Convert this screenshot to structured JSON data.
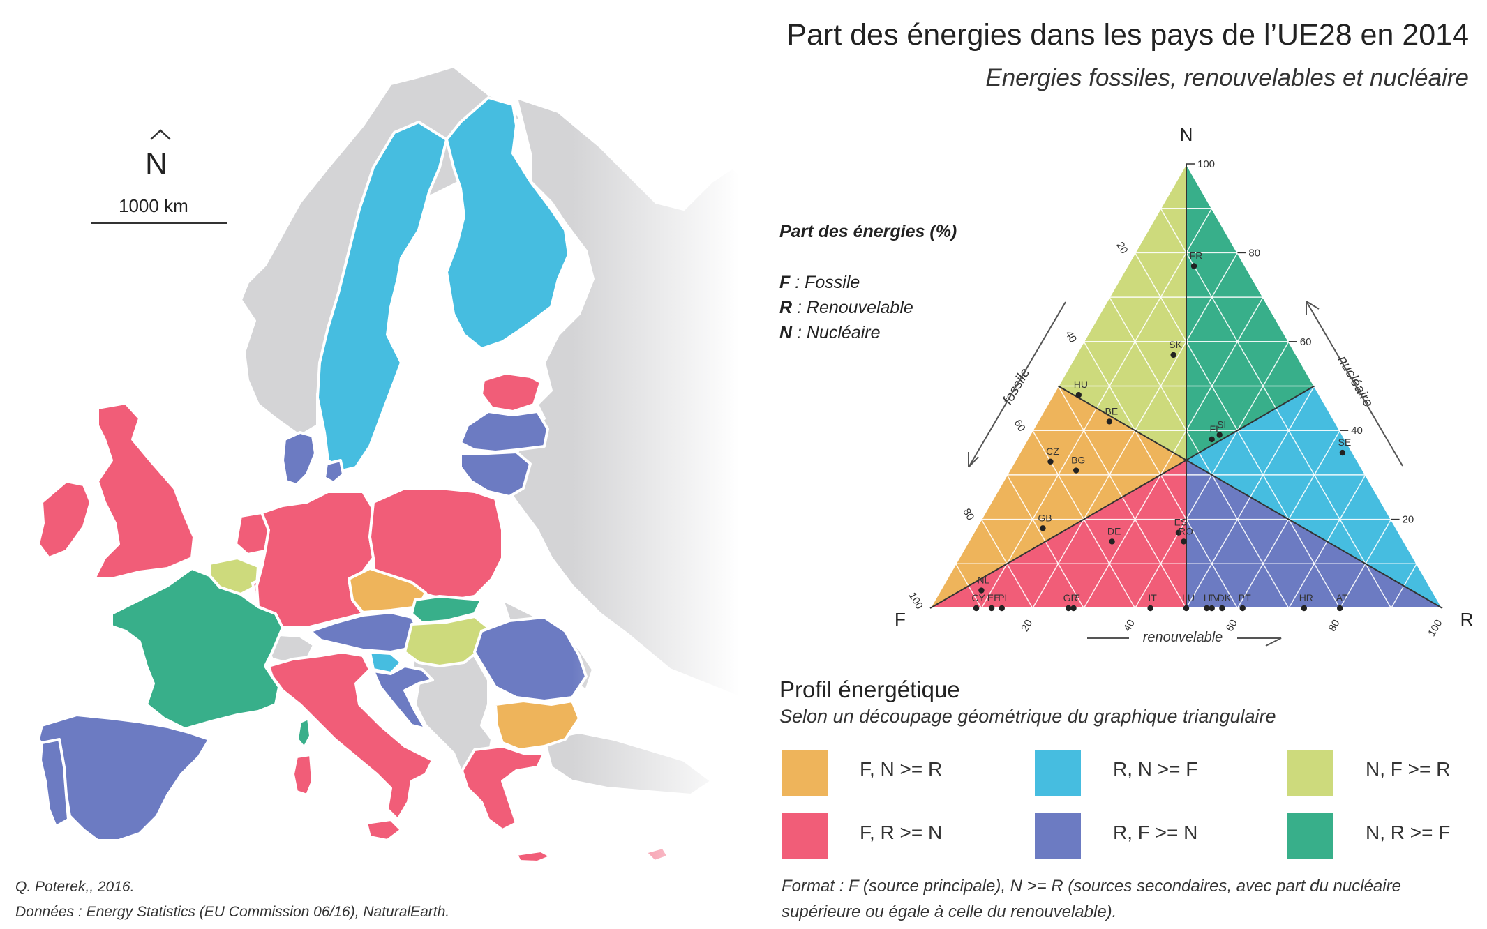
{
  "title": "Part des énergies dans les pays de l’UE28 en 2014",
  "subtitle": "Energies fossiles, renouvelables et nucléaire",
  "legend": {
    "title": "Part des énergies (%)",
    "items": [
      {
        "key": "F",
        "label": " : Fossile"
      },
      {
        "key": "R",
        "label": " : Renouvelable"
      },
      {
        "key": "N",
        "label": " : Nucléaire"
      }
    ]
  },
  "map": {
    "north_label": "N",
    "scale_label": "1000 km"
  },
  "ternary": {
    "vertex_labels": {
      "top": "N",
      "left": "F",
      "right": "R"
    },
    "axis_names": {
      "fossile": "fossile",
      "nucleaire": "nucléaire",
      "renouvelable": "renouvelable"
    },
    "ticks": [
      "20",
      "40",
      "60",
      "80",
      "100"
    ],
    "points": [
      {
        "code": "FR",
        "F": 10,
        "R": 13,
        "N": 77
      },
      {
        "code": "SK",
        "F": 24,
        "R": 19,
        "N": 57
      },
      {
        "code": "HU",
        "F": 47,
        "R": 5,
        "N": 48
      },
      {
        "code": "BE",
        "F": 44,
        "R": 14,
        "N": 42
      },
      {
        "code": "SE",
        "F": 2,
        "R": 63,
        "N": 35
      },
      {
        "code": "SI",
        "F": 24,
        "R": 37,
        "N": 39
      },
      {
        "code": "FI",
        "F": 26,
        "R": 36,
        "N": 38
      },
      {
        "code": "CZ",
        "F": 60,
        "R": 7,
        "N": 33
      },
      {
        "code": "BG",
        "F": 56,
        "R": 13,
        "N": 31
      },
      {
        "code": "ES",
        "F": 43,
        "R": 40,
        "N": 17
      },
      {
        "code": "RO",
        "F": 43,
        "R": 42,
        "N": 15
      },
      {
        "code": "GB",
        "F": 69,
        "R": 13,
        "N": 18
      },
      {
        "code": "DE",
        "F": 57,
        "R": 28,
        "N": 15
      },
      {
        "code": "NL",
        "F": 88,
        "R": 8,
        "N": 4
      },
      {
        "code": "CY",
        "F": 91,
        "R": 9,
        "N": 0
      },
      {
        "code": "EE",
        "F": 88,
        "R": 12,
        "N": 0
      },
      {
        "code": "PL",
        "F": 86,
        "R": 14,
        "N": 0
      },
      {
        "code": "GR",
        "F": 73,
        "R": 27,
        "N": 0
      },
      {
        "code": "IE",
        "F": 72,
        "R": 28,
        "N": 0
      },
      {
        "code": "IT",
        "F": 57,
        "R": 43,
        "N": 0
      },
      {
        "code": "LU",
        "F": 50,
        "R": 50,
        "N": 0
      },
      {
        "code": "LT",
        "F": 46,
        "R": 54,
        "N": 0
      },
      {
        "code": "LV",
        "F": 45,
        "R": 55,
        "N": 0
      },
      {
        "code": "DK",
        "F": 43,
        "R": 57,
        "N": 0
      },
      {
        "code": "PT",
        "F": 39,
        "R": 61,
        "N": 0
      },
      {
        "code": "HR",
        "F": 27,
        "R": 73,
        "N": 0
      },
      {
        "code": "AT",
        "F": 20,
        "R": 80,
        "N": 0
      }
    ]
  },
  "profil": {
    "title": "Profil énergétique",
    "subtitle": "Selon un découpage géométrique du graphique triangulaire",
    "categories": [
      {
        "label": "F, N >= R",
        "color": "#EEB45B"
      },
      {
        "label": "R, N >= F",
        "color": "#46BDE0"
      },
      {
        "label": "N, F >= R",
        "color": "#CDDA7C"
      },
      {
        "label": "F, R >= N",
        "color": "#F15D78"
      },
      {
        "label": "R, F >= N",
        "color": "#6C7BC2"
      },
      {
        "label": "N, R >= F",
        "color": "#38AF8A"
      }
    ]
  },
  "format_note": "Format : F (source principale), N >= R (sources secondaires, avec part du nucléaire supérieure ou égale à celle du renouvelable).",
  "credits": {
    "author": "Q. Poterek,, 2016.",
    "sources": "Données : Energy Statistics (EU Commission 06/16), NaturalEarth."
  }
}
